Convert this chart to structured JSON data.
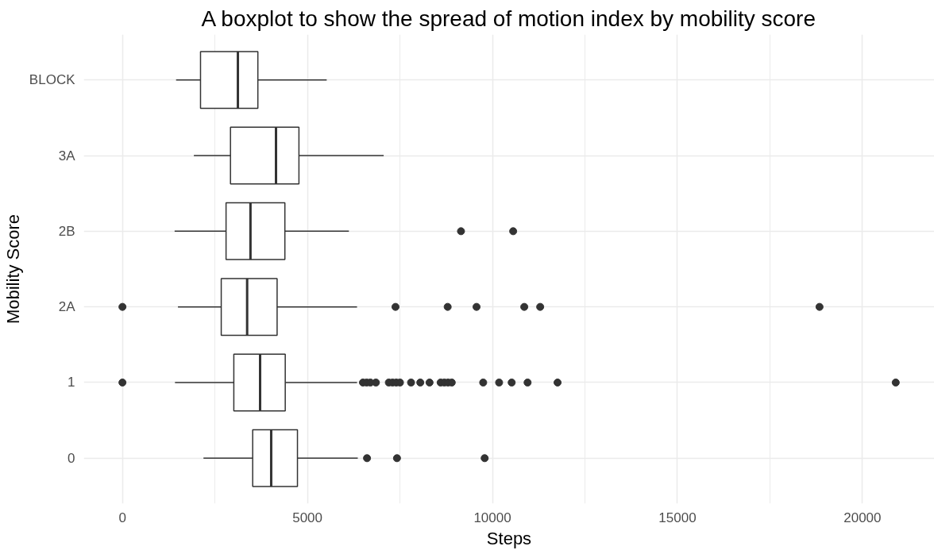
{
  "chart_data": {
    "type": "box",
    "title": "A boxplot to show the spread of motion index by mobility score",
    "xlabel": "Steps",
    "ylabel": "Mobility Score",
    "orientation": "horizontal",
    "color": "#333333",
    "categories": [
      "BLOCK",
      "3A",
      "2B",
      "2A",
      "1",
      "0"
    ],
    "boxes": [
      {
        "low": 1450,
        "q1": 2110,
        "median": 3120,
        "q3": 3660,
        "high": 5520
      },
      {
        "low": 1930,
        "q1": 2920,
        "median": 4150,
        "q3": 4770,
        "high": 7060
      },
      {
        "low": 1410,
        "q1": 2800,
        "median": 3460,
        "q3": 4390,
        "high": 6120,
        "outliers": [
          9150,
          10560
        ]
      },
      {
        "low": 1500,
        "q1": 2670,
        "median": 3370,
        "q3": 4180,
        "high": 6340,
        "outliers": [
          0,
          7380,
          8790,
          9570,
          10860,
          11290,
          18840
        ]
      },
      {
        "low": 1420,
        "q1": 3010,
        "median": 3720,
        "q3": 4400,
        "high": 6340,
        "outliers": [
          0,
          6500,
          6600,
          6700,
          6850,
          7200,
          7300,
          7400,
          7500,
          7800,
          8050,
          8300,
          8600,
          8700,
          8800,
          8900,
          9750,
          10180,
          10520,
          10950,
          11760,
          20900
        ]
      },
      {
        "low": 2190,
        "q1": 3520,
        "median": 4020,
        "q3": 4730,
        "high": 6360,
        "outliers": [
          6610,
          7420,
          9790
        ]
      }
    ],
    "xlim": [
      -1045,
      21945
    ],
    "xticks": [
      0,
      5000,
      10000,
      15000,
      20000
    ],
    "grid": true
  }
}
